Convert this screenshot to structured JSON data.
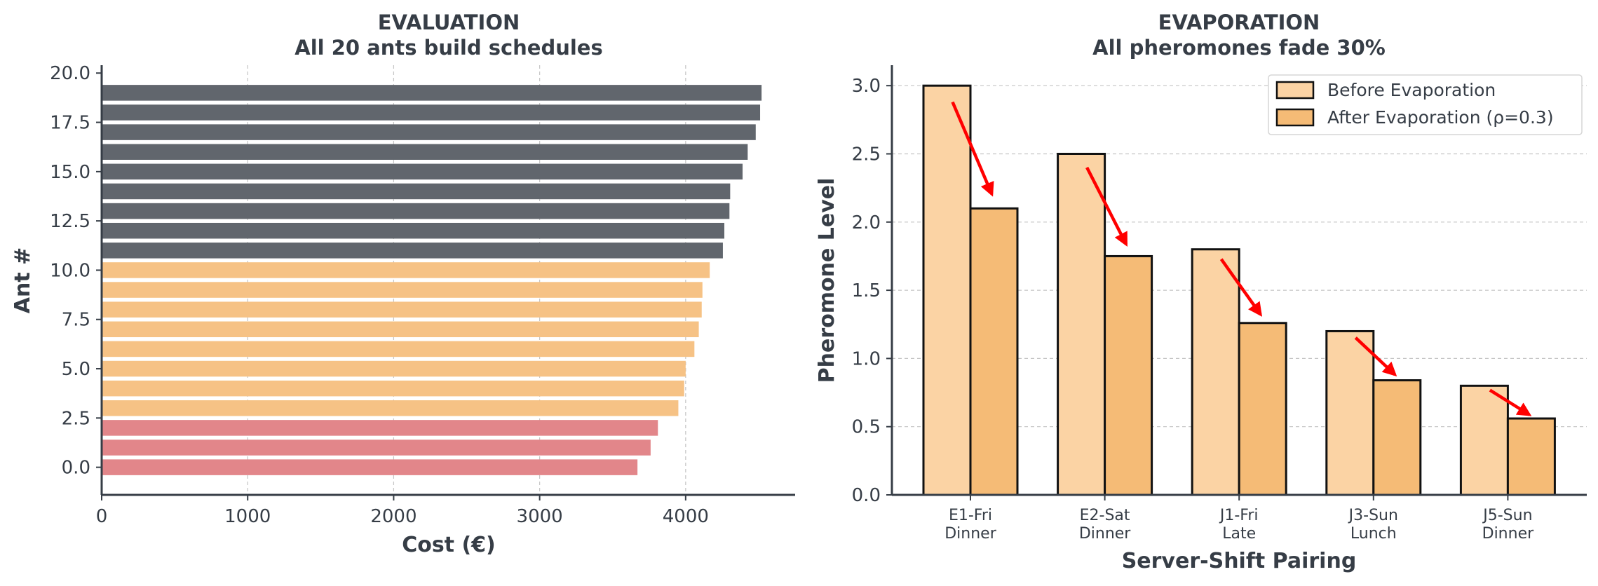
{
  "colors": {
    "dark": "#61666d",
    "orange": "#f6c285",
    "red": "#e2868a",
    "before": "#fbd3a4",
    "after": "#f5bb76",
    "arrow": "#ff0000",
    "text": "#363d46"
  },
  "chart_data": [
    {
      "type": "bar",
      "orientation": "horizontal",
      "title_line1": "EVALUATION",
      "title_line2": "All 20 ants build schedules",
      "xlabel": "Cost (€)",
      "ylabel": "Ant #",
      "xlim": [
        0,
        4750
      ],
      "ylim": [
        -1.4,
        20.4
      ],
      "xticks": [
        0,
        1000,
        2000,
        3000,
        4000
      ],
      "xtick_labels": [
        "0",
        "1000",
        "2000",
        "3000",
        "4000"
      ],
      "yticks": [
        0,
        2.5,
        5,
        7.5,
        10,
        12.5,
        15,
        17.5,
        20
      ],
      "ytick_labels": [
        "0.0",
        "2.5",
        "5.0",
        "7.5",
        "10.0",
        "12.5",
        "15.0",
        "17.5",
        "20.0"
      ],
      "grid": "x",
      "ants": [
        0,
        1,
        2,
        3,
        4,
        5,
        6,
        7,
        8,
        9,
        10,
        11,
        12,
        13,
        14,
        15,
        16,
        17,
        18,
        19
      ],
      "values": [
        3670,
        3760,
        3810,
        3950,
        3990,
        4000,
        4060,
        4090,
        4110,
        4115,
        4165,
        4255,
        4265,
        4300,
        4305,
        4390,
        4425,
        4480,
        4510,
        4520
      ],
      "groups": [
        "red",
        "red",
        "red",
        "orange",
        "orange",
        "orange",
        "orange",
        "orange",
        "orange",
        "orange",
        "orange",
        "dark",
        "dark",
        "dark",
        "dark",
        "dark",
        "dark",
        "dark",
        "dark",
        "dark"
      ]
    },
    {
      "type": "bar",
      "orientation": "vertical",
      "title_line1": "EVAPORATION",
      "title_line2": "All pheromones fade 30%",
      "xlabel": "Server-Shift Pairing",
      "ylabel": "Pheromone Level",
      "ylim": [
        0,
        3.15
      ],
      "yticks": [
        0,
        0.5,
        1.0,
        1.5,
        2.0,
        2.5,
        3.0
      ],
      "ytick_labels": [
        "0.0",
        "0.5",
        "1.0",
        "1.5",
        "2.0",
        "2.5",
        "3.0"
      ],
      "grid": "y",
      "categories": [
        [
          "E1-Fri",
          "Dinner"
        ],
        [
          "E2-Sat",
          "Dinner"
        ],
        [
          "J1-Fri",
          "Late"
        ],
        [
          "J3-Sun",
          "Lunch"
        ],
        [
          "J5-Sun",
          "Dinner"
        ]
      ],
      "series": [
        {
          "name": "Before Evaporation",
          "values": [
            3.0,
            2.5,
            1.8,
            1.2,
            0.8
          ]
        },
        {
          "name": "After Evaporation (ρ=0.3)",
          "values": [
            2.1,
            1.75,
            1.26,
            0.84,
            0.56
          ]
        }
      ],
      "legend_position": "top-right",
      "annotations": "red arrows from each Before bar to its After bar"
    }
  ]
}
